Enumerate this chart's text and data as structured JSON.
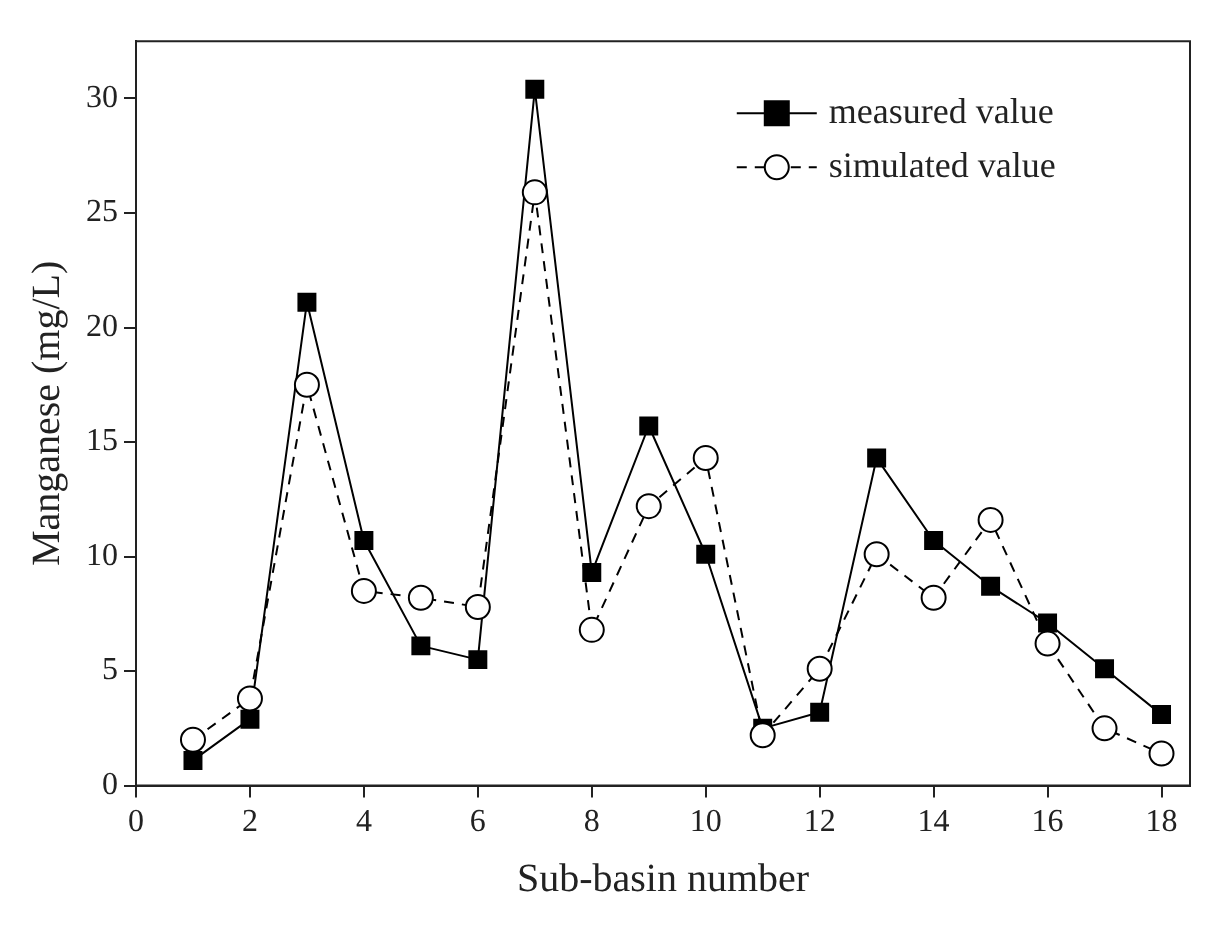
{
  "chart_data": {
    "type": "line",
    "xlabel": "Sub-basin number",
    "ylabel": "Manganese (mg/L)",
    "x": [
      1,
      2,
      3,
      4,
      5,
      6,
      7,
      8,
      9,
      10,
      11,
      12,
      13,
      14,
      15,
      16,
      17,
      18
    ],
    "series": [
      {
        "name": "measured value",
        "color": "#000000",
        "marker": "square",
        "line_style": "solid",
        "values": [
          1.1,
          2.9,
          21.1,
          10.7,
          6.1,
          5.5,
          30.4,
          9.3,
          15.7,
          10.1,
          2.5,
          3.2,
          14.3,
          10.7,
          8.7,
          7.1,
          5.1,
          3.1
        ]
      },
      {
        "name": "simulated value",
        "color": "#000000",
        "marker": "circle",
        "line_style": "dashed",
        "values": [
          2.0,
          3.8,
          17.5,
          8.5,
          8.2,
          7.8,
          25.9,
          6.8,
          12.2,
          14.3,
          2.2,
          5.1,
          10.1,
          8.2,
          11.6,
          6.2,
          2.5,
          1.4
        ]
      }
    ],
    "xlim": [
      0,
      18.5
    ],
    "xticks": [
      0,
      2,
      4,
      6,
      8,
      10,
      12,
      14,
      16,
      18
    ],
    "ylim": [
      0,
      32.5
    ],
    "yticks": [
      0,
      5,
      10,
      15,
      20,
      25,
      30
    ],
    "grid": false,
    "legend": "top right"
  }
}
